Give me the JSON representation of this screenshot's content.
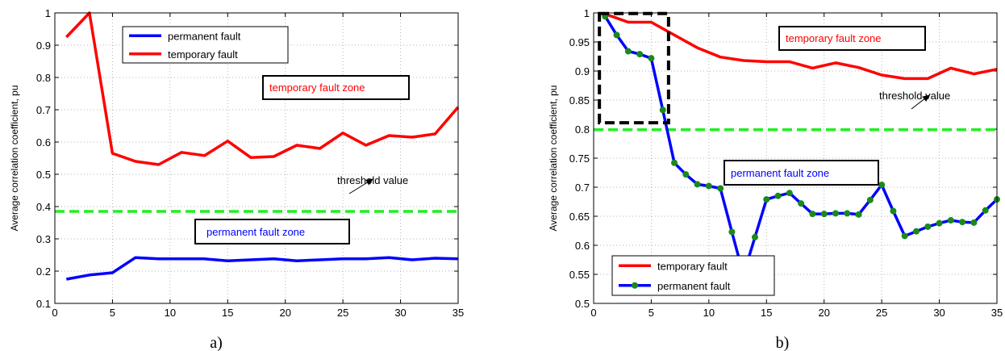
{
  "chart_data": [
    {
      "type": "line",
      "caption": "a)",
      "xlabel": "",
      "ylabel": "Average correlation coefficient, pu",
      "xlim": [
        0,
        35
      ],
      "ylim": [
        0.1,
        1
      ],
      "xticks": [
        0,
        5,
        10,
        15,
        20,
        25,
        30,
        35
      ],
      "yticks": [
        0.1,
        0.2,
        0.3,
        0.4,
        0.5,
        0.6,
        0.7,
        0.8,
        0.9,
        1
      ],
      "ytick_labels": [
        "0.1",
        "0.2",
        "0.3",
        "0.4",
        "0.5",
        "0.6",
        "0.7",
        "0.8",
        "0.9",
        "1"
      ],
      "grid": true,
      "legend_position": "top-left",
      "series": [
        {
          "name": "permanent fault",
          "color": "#0000ff",
          "markers": false,
          "x": [
            1,
            3,
            5,
            7,
            9,
            11,
            13,
            15,
            17,
            19,
            21,
            23,
            25,
            27,
            29,
            31,
            33,
            35
          ],
          "y": [
            0.175,
            0.188,
            0.195,
            0.242,
            0.238,
            0.238,
            0.238,
            0.232,
            0.235,
            0.238,
            0.232,
            0.235,
            0.238,
            0.238,
            0.242,
            0.235,
            0.24,
            0.238
          ]
        },
        {
          "name": "temporary fault",
          "color": "#ff0000",
          "markers": false,
          "x": [
            1,
            3,
            5,
            7,
            9,
            11,
            13,
            15,
            17,
            19,
            21,
            23,
            25,
            27,
            29,
            31,
            33,
            35
          ],
          "y": [
            0.925,
            1.0,
            0.565,
            0.54,
            0.53,
            0.568,
            0.558,
            0.603,
            0.552,
            0.555,
            0.59,
            0.58,
            0.628,
            0.59,
            0.62,
            0.615,
            0.625,
            0.708
          ]
        }
      ],
      "threshold": {
        "y": 0.385,
        "color": "#22ee22"
      },
      "annotations": [
        {
          "text": "temporary fault zone",
          "color": "#ff0000"
        },
        {
          "text": "permanent fault zone",
          "color": "#0000ff"
        },
        {
          "text": "threshold value",
          "color": "#000000"
        }
      ]
    },
    {
      "type": "line",
      "caption": "b)",
      "xlabel": "",
      "ylabel": "Average correlation coefficient, pu",
      "xlim": [
        0,
        35
      ],
      "ylim": [
        0.5,
        1
      ],
      "xticks": [
        0,
        5,
        10,
        15,
        20,
        25,
        30,
        35
      ],
      "yticks": [
        0.5,
        0.55,
        0.6,
        0.65,
        0.7,
        0.75,
        0.8,
        0.85,
        0.9,
        0.95,
        1
      ],
      "ytick_labels": [
        "0.5",
        "0.55",
        "0.6",
        "0.65",
        "0.7",
        "0.75",
        "0.8",
        "0.85",
        "0.9",
        "0.95",
        "1"
      ],
      "grid": true,
      "legend_position": "bottom-left",
      "series": [
        {
          "name": "temporary fault",
          "color": "#ff0000",
          "markers": false,
          "x": [
            1,
            3,
            5,
            7,
            9,
            11,
            13,
            15,
            17,
            19,
            21,
            23,
            25,
            27,
            29,
            31,
            33,
            35
          ],
          "y": [
            0.998,
            0.984,
            0.984,
            0.962,
            0.94,
            0.924,
            0.918,
            0.916,
            0.916,
            0.905,
            0.914,
            0.906,
            0.893,
            0.887,
            0.887,
            0.905,
            0.895,
            0.903
          ]
        },
        {
          "name": "permanent fault",
          "color": "#0000ff",
          "markers": true,
          "marker_color": "#1a8a1a",
          "x": [
            1,
            2,
            3,
            4,
            5,
            6,
            7,
            8,
            9,
            10,
            11,
            12,
            13,
            14,
            15,
            16,
            17,
            18,
            19,
            20,
            21,
            22,
            23,
            24,
            25,
            26,
            27,
            28,
            29,
            30,
            31,
            32,
            33,
            34,
            35
          ],
          "y": [
            0.994,
            0.962,
            0.934,
            0.929,
            0.922,
            0.833,
            0.742,
            0.722,
            0.705,
            0.702,
            0.698,
            0.623,
            0.549,
            0.614,
            0.679,
            0.685,
            0.69,
            0.672,
            0.654,
            0.654,
            0.655,
            0.655,
            0.653,
            0.678,
            0.704,
            0.659,
            0.616,
            0.624,
            0.632,
            0.638,
            0.643,
            0.64,
            0.639,
            0.66,
            0.679
          ]
        }
      ],
      "threshold": {
        "y": 0.799,
        "color": "#22ee22"
      },
      "highlight_box": {
        "x": [
          0.5,
          6.5
        ],
        "y": [
          0.811,
          0.999
        ]
      },
      "annotations": [
        {
          "text": "temporary fault zone",
          "color": "#ff0000"
        },
        {
          "text": "permanent fault zone",
          "color": "#0000ff"
        },
        {
          "text": "threshold value",
          "color": "#000000"
        }
      ]
    }
  ]
}
